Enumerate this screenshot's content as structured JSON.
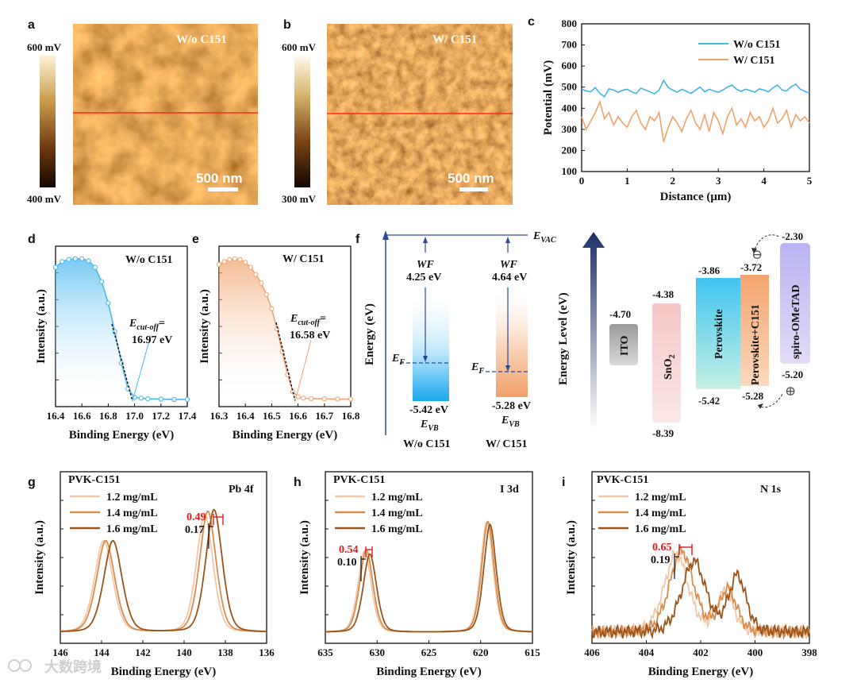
{
  "panels": {
    "a": "a",
    "b": "b",
    "c": "c",
    "d": "d",
    "e": "e",
    "f": "f",
    "g": "g",
    "h": "h",
    "i": "i"
  },
  "kpfm": {
    "a": {
      "label": "W/o C151",
      "cb_top": "600 mV",
      "cb_bottom": "400 mV",
      "scale": "500 nm"
    },
    "b": {
      "label": "W/   C151",
      "cb_top": "600 mV",
      "cb_bottom": "300 mV",
      "scale": "500 nm"
    }
  },
  "chart_data": [
    {
      "id": "c",
      "type": "line",
      "xlabel": "Distance (μm)",
      "ylabel": "Potential (mV)",
      "xlim": [
        0,
        5
      ],
      "ylim": [
        100,
        800
      ],
      "xticks": [
        "0",
        "1",
        "2",
        "3",
        "4",
        "5"
      ],
      "yticks": [
        "100",
        "200",
        "300",
        "400",
        "500",
        "600",
        "700",
        "800"
      ],
      "legend_position": "top-right",
      "series": [
        {
          "name": "W/o C151",
          "color": "#3fb6e6",
          "x": [
            0,
            0.1,
            0.2,
            0.3,
            0.4,
            0.5,
            0.6,
            0.7,
            0.8,
            0.9,
            1.0,
            1.1,
            1.2,
            1.3,
            1.4,
            1.5,
            1.6,
            1.7,
            1.8,
            1.9,
            2.0,
            2.1,
            2.2,
            2.3,
            2.4,
            2.5,
            2.6,
            2.7,
            2.8,
            2.9,
            3.0,
            3.1,
            3.2,
            3.3,
            3.4,
            3.5,
            3.6,
            3.7,
            3.8,
            3.9,
            4.0,
            4.1,
            4.2,
            4.3,
            4.4,
            4.5,
            4.6,
            4.7,
            4.8,
            4.9,
            5.0
          ],
          "y": [
            490,
            482,
            478,
            498,
            470,
            455,
            492,
            486,
            476,
            485,
            490,
            478,
            470,
            496,
            486,
            478,
            468,
            486,
            532,
            498,
            486,
            476,
            490,
            480,
            470,
            486,
            500,
            478,
            490,
            482,
            476,
            486,
            500,
            510,
            490,
            480,
            490,
            484,
            476,
            492,
            486,
            478,
            496,
            510,
            486,
            482,
            502,
            514,
            490,
            480,
            472
          ]
        },
        {
          "name": "W/   C151",
          "color": "#efa36a",
          "x": [
            0,
            0.1,
            0.2,
            0.3,
            0.4,
            0.5,
            0.6,
            0.7,
            0.8,
            0.9,
            1.0,
            1.1,
            1.2,
            1.3,
            1.4,
            1.5,
            1.6,
            1.7,
            1.8,
            1.9,
            2.0,
            2.1,
            2.2,
            2.3,
            2.4,
            2.5,
            2.6,
            2.7,
            2.8,
            2.9,
            3.0,
            3.1,
            3.2,
            3.3,
            3.4,
            3.5,
            3.6,
            3.7,
            3.8,
            3.9,
            4.0,
            4.1,
            4.2,
            4.3,
            4.4,
            4.5,
            4.6,
            4.7,
            4.8,
            4.9,
            5.0
          ],
          "y": [
            360,
            300,
            340,
            380,
            430,
            350,
            380,
            320,
            360,
            330,
            310,
            360,
            390,
            330,
            300,
            360,
            340,
            380,
            240,
            310,
            360,
            330,
            290,
            350,
            390,
            330,
            300,
            370,
            290,
            380,
            340,
            280,
            360,
            400,
            320,
            350,
            310,
            380,
            340,
            360,
            310,
            340,
            400,
            330,
            350,
            390,
            310,
            370,
            340,
            360,
            330
          ]
        }
      ]
    },
    {
      "id": "d",
      "type": "line",
      "xlabel": "Binding Energy (eV)",
      "ylabel": "Intensity (a.u.)",
      "xlim": [
        16.4,
        17.4
      ],
      "xticks": [
        "16.4",
        "16.6",
        "16.8",
        "17.0",
        "17.2",
        "17.4"
      ],
      "color": "#4ab8ee",
      "label": "W/o C151",
      "cutoff_label": "E",
      "cutoff_sub": "cut-off",
      "cutoff_eq": "=",
      "cutoff_value": "16.97 eV",
      "x": [
        16.4,
        16.45,
        16.5,
        16.55,
        16.6,
        16.65,
        16.7,
        16.75,
        16.8,
        16.85,
        16.9,
        16.95,
        17.0,
        17.05,
        17.1,
        17.2,
        17.3,
        17.4
      ],
      "y": [
        0.93,
        0.97,
        0.985,
        0.99,
        0.99,
        0.975,
        0.93,
        0.83,
        0.68,
        0.48,
        0.26,
        0.08,
        0.02,
        0.015,
        0.01,
        0.008,
        0.006,
        0.006
      ]
    },
    {
      "id": "e",
      "type": "line",
      "xlabel": "Binding Energy (eV)",
      "ylabel": "Intensity (a.u.)",
      "xlim": [
        16.3,
        16.8
      ],
      "xticks": [
        "16.3",
        "16.4",
        "16.5",
        "16.6",
        "16.7",
        "16.8"
      ],
      "color": "#f2a470",
      "label": "W/  C151",
      "cutoff_label": "E",
      "cutoff_sub": "cut-off",
      "cutoff_eq": "=",
      "cutoff_value": "16.58 eV",
      "x": [
        16.3,
        16.32,
        16.34,
        16.36,
        16.38,
        16.4,
        16.42,
        16.44,
        16.46,
        16.48,
        16.5,
        16.52,
        16.54,
        16.56,
        16.58,
        16.6,
        16.62,
        16.65,
        16.7,
        16.75,
        16.8
      ],
      "y": [
        0.95,
        0.97,
        0.985,
        0.99,
        0.985,
        0.965,
        0.93,
        0.88,
        0.82,
        0.74,
        0.64,
        0.5,
        0.34,
        0.18,
        0.06,
        0.025,
        0.015,
        0.012,
        0.01,
        0.008,
        0.008
      ]
    },
    {
      "id": "g",
      "type": "line",
      "title": "PVK-C151",
      "peak": "Pb 4f",
      "xlabel": "Binding Energy (eV)",
      "ylabel": "Intensity (a.u.)",
      "xlim": [
        146,
        136
      ],
      "xticks": [
        "146",
        "144",
        "142",
        "140",
        "138",
        "136"
      ],
      "legend_position": "top-left",
      "shift_red": "0.49",
      "shift_black": "0.17",
      "series": [
        {
          "name": "1.2 mg/mL",
          "color": "#f3c7a6",
          "peaks": [
            [
              143.9,
              0.62,
              0.55
            ],
            [
              139.0,
              0.8,
              0.5
            ]
          ]
        },
        {
          "name": "1.4 mg/mL",
          "color": "#d88c4e",
          "peaks": [
            [
              143.8,
              0.62,
              0.55
            ],
            [
              138.85,
              0.82,
              0.5
            ]
          ]
        },
        {
          "name": "1.6 mg/mL",
          "color": "#9a5419",
          "peaks": [
            [
              143.45,
              0.62,
              0.55
            ],
            [
              138.55,
              0.83,
              0.5
            ]
          ]
        }
      ]
    },
    {
      "id": "h",
      "type": "line",
      "title": "PVK-C151",
      "peak": "I 3d",
      "xlabel": "Binding Energy (eV)",
      "ylabel": "Intensity (a.u.)",
      "xlim": [
        635,
        615
      ],
      "xticks": [
        "635",
        "630",
        "625",
        "620",
        "615"
      ],
      "legend_position": "top-left",
      "shift_red": "0.54",
      "shift_black": "0.10",
      "series": [
        {
          "name": "1.2 mg/mL",
          "color": "#f3c7a6",
          "peaks": [
            [
              631.2,
              0.55,
              0.8
            ],
            [
              619.4,
              0.75,
              0.75
            ]
          ]
        },
        {
          "name": "1.4 mg/mL",
          "color": "#d88c4e",
          "peaks": [
            [
              631.05,
              0.56,
              0.8
            ],
            [
              619.3,
              0.75,
              0.75
            ]
          ]
        },
        {
          "name": "1.6 mg/mL",
          "color": "#9a5419",
          "peaks": [
            [
              630.7,
              0.53,
              0.8
            ],
            [
              619.1,
              0.73,
              0.75
            ]
          ]
        }
      ]
    },
    {
      "id": "i",
      "type": "line",
      "title": "PVK-C151",
      "peak": "N 1s",
      "xlabel": "Binding Energy (eV)",
      "ylabel": "Intensity (a.u.)",
      "xlim": [
        406,
        398
      ],
      "xticks": [
        "406",
        "404",
        "402",
        "400",
        "398"
      ],
      "legend_position": "top-left",
      "shift_red": "0.65",
      "shift_black": "0.19",
      "series": [
        {
          "name": "1.2 mg/mL",
          "color": "#f3c7a6",
          "peaks": [
            [
              402.9,
              0.53,
              0.55
            ],
            [
              401.1,
              0.27,
              0.4
            ]
          ]
        },
        {
          "name": "1.4 mg/mL",
          "color": "#d88c4e",
          "peaks": [
            [
              402.7,
              0.55,
              0.55
            ],
            [
              401.0,
              0.29,
              0.4
            ]
          ]
        },
        {
          "name": "1.6 mg/mL",
          "color": "#9a5419",
          "peaks": [
            [
              402.25,
              0.48,
              0.55
            ],
            [
              400.65,
              0.38,
              0.4
            ]
          ]
        }
      ]
    }
  ],
  "band_f": {
    "ylabel": "Energy (eV)",
    "evac": "E",
    "evac_sub": "VAC",
    "ef": "E",
    "ef_sub": "F",
    "evb": "E",
    "evb_sub": "VB",
    "wf": "WF",
    "left": {
      "wf_value": "4.25 eV",
      "vb": "-5.42 eV",
      "label": "W/o C151",
      "color": "#18a9ee"
    },
    "right": {
      "wf_value": "4.64 eV",
      "vb": "-5.28 eV",
      "label": "W/   C151",
      "color": "#f0a575"
    }
  },
  "energy_level": {
    "ylabel": "Energy  Level (eV)",
    "ito": {
      "name": "ITO",
      "value": "-4.70"
    },
    "sno2": {
      "name": "SnO",
      "name_sub": "2",
      "top": "-4.38",
      "bottom": "-8.39"
    },
    "pvk": {
      "name": "Perovskite",
      "top": "-3.86",
      "bottom": "-5.42"
    },
    "pvkc": {
      "name": "Perovskite+C151",
      "top": "-3.72",
      "bottom": "-5.28"
    },
    "spiro": {
      "name": "spiro-OMeTAD",
      "top": "-2.30",
      "bottom": "-5.20"
    },
    "minus": "⊖",
    "plus": "⊕"
  },
  "watermark": "大数跨境"
}
